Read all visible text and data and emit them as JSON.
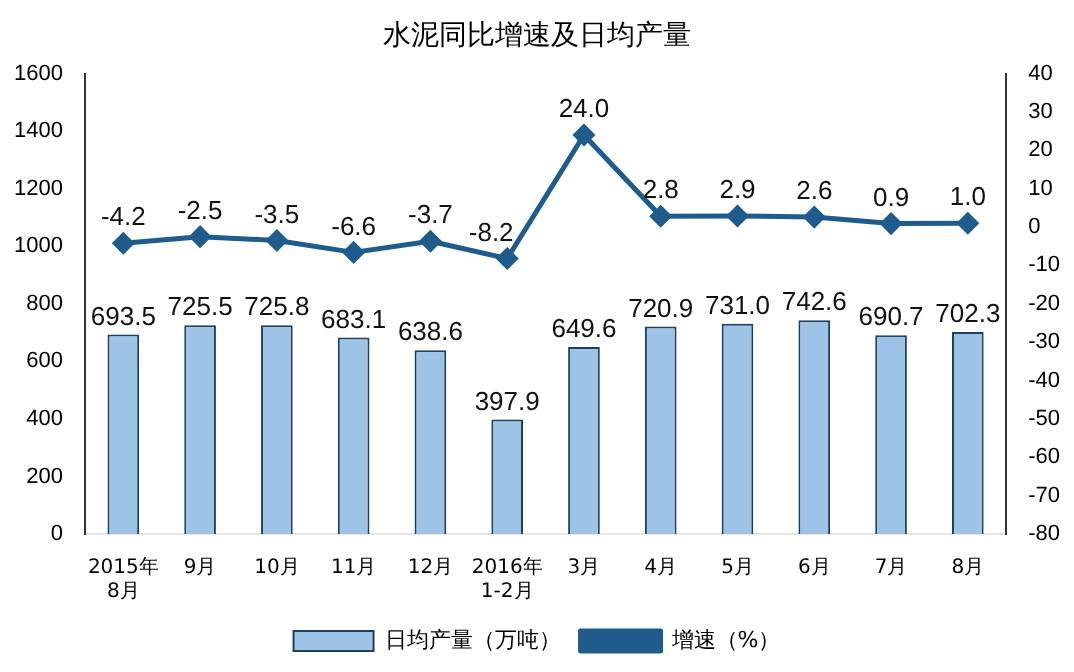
{
  "chart_data": {
    "type": "bar",
    "title": "水泥同比增速及日均产量",
    "categories": [
      "2015年\n8月",
      "9月",
      "10月",
      "11月",
      "12月",
      "2016年\n1-2月",
      "3月",
      "4月",
      "5月",
      "6月",
      "7月",
      "8月"
    ],
    "series": [
      {
        "name": "日均产量（万吨）",
        "color": "#9dc3e6",
        "values": [
          693.5,
          725.5,
          725.8,
          683.1,
          638.6,
          397.9,
          649.6,
          720.9,
          731.0,
          742.6,
          690.7,
          702.3
        ],
        "value_labels": [
          "693.5",
          "725.5",
          "725.8",
          "683.1",
          "638.6",
          "397.9",
          "649.6",
          "720.9",
          "731.0",
          "742.6",
          "690.7",
          "702.3"
        ]
      },
      {
        "name": "增速（%）",
        "type": "line",
        "axis": "y2",
        "color": "#1f5c8b",
        "marker": "diamond",
        "values": [
          -4.2,
          -2.5,
          -3.5,
          -6.6,
          -3.7,
          -8.2,
          24.0,
          2.8,
          2.9,
          2.6,
          0.9,
          1.0
        ],
        "value_labels": [
          "-4.2",
          "-2.5",
          "-3.5",
          "-6.6",
          "-3.7",
          "-8.2",
          "24.0",
          "2.8",
          "2.9",
          "2.6",
          "0.9",
          "1.0"
        ]
      }
    ],
    "ylim": [
      0,
      1600
    ],
    "yticks": [
      0,
      200,
      400,
      600,
      800,
      1000,
      1200,
      1400,
      1600
    ],
    "y2lim": [
      -80,
      40
    ],
    "y2ticks": [
      -80,
      -70,
      -60,
      -50,
      -40,
      -30,
      -20,
      -10,
      0,
      10,
      20,
      30,
      40
    ],
    "legend": "bottom",
    "grid": false
  }
}
